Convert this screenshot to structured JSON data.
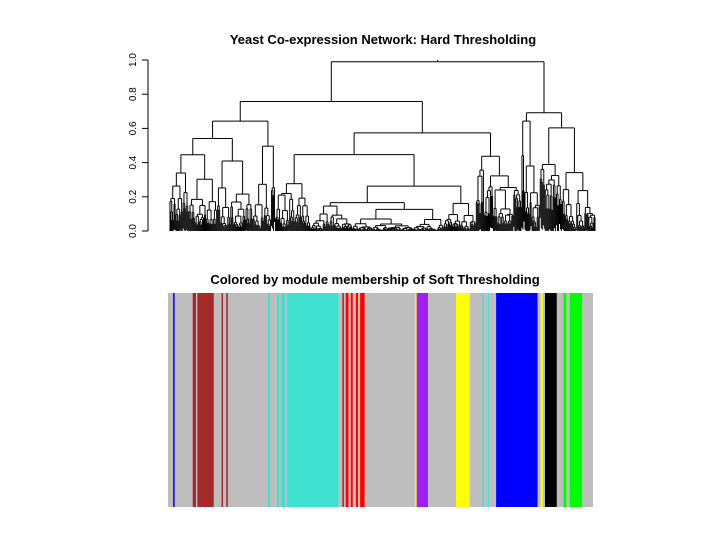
{
  "chart_data": [
    {
      "type": "dendrogram",
      "title": "Yeast Co-expression Network: Hard Thresholding",
      "xlabel": "",
      "ylabel": "",
      "ylim": [
        0.0,
        1.0
      ],
      "yticks": [
        0.0,
        0.2,
        0.4,
        0.6,
        0.8,
        1.0
      ],
      "ytick_labels": [
        "0.0",
        "0.2",
        "0.4",
        "0.6",
        "0.8",
        "1.0"
      ],
      "leaf_count": 420,
      "root_height": 1.0,
      "merge_height_range": [
        0.0,
        0.99
      ]
    },
    {
      "type": "color-bar",
      "title": "Colored by module membership of Soft Thresholding",
      "xlabel": "",
      "ylabel": "",
      "segments": [
        {
          "color": "grey",
          "start": 0.0,
          "end": 0.012
        },
        {
          "color": "blue",
          "start": 0.012,
          "end": 0.016
        },
        {
          "color": "grey",
          "start": 0.016,
          "end": 0.058
        },
        {
          "color": "brown",
          "start": 0.058,
          "end": 0.066
        },
        {
          "color": "grey",
          "start": 0.066,
          "end": 0.069
        },
        {
          "color": "brown",
          "start": 0.069,
          "end": 0.108
        },
        {
          "color": "grey",
          "start": 0.108,
          "end": 0.126
        },
        {
          "color": "brown",
          "start": 0.126,
          "end": 0.13
        },
        {
          "color": "grey",
          "start": 0.13,
          "end": 0.137
        },
        {
          "color": "brown",
          "start": 0.137,
          "end": 0.141
        },
        {
          "color": "grey",
          "start": 0.141,
          "end": 0.235
        },
        {
          "color": "turquoise",
          "start": 0.235,
          "end": 0.24
        },
        {
          "color": "grey",
          "start": 0.24,
          "end": 0.256
        },
        {
          "color": "turquoise",
          "start": 0.256,
          "end": 0.262
        },
        {
          "color": "grey",
          "start": 0.262,
          "end": 0.266
        },
        {
          "color": "turquoise",
          "start": 0.266,
          "end": 0.277
        },
        {
          "color": "grey",
          "start": 0.277,
          "end": 0.28
        },
        {
          "color": "turquoise",
          "start": 0.28,
          "end": 0.402
        },
        {
          "color": "grey",
          "start": 0.402,
          "end": 0.41
        },
        {
          "color": "brown",
          "start": 0.41,
          "end": 0.414
        },
        {
          "color": "grey",
          "start": 0.414,
          "end": 0.418
        },
        {
          "color": "red",
          "start": 0.418,
          "end": 0.425
        },
        {
          "color": "grey",
          "start": 0.425,
          "end": 0.43
        },
        {
          "color": "red",
          "start": 0.43,
          "end": 0.435
        },
        {
          "color": "grey",
          "start": 0.435,
          "end": 0.442
        },
        {
          "color": "red",
          "start": 0.442,
          "end": 0.447
        },
        {
          "color": "grey",
          "start": 0.447,
          "end": 0.452
        },
        {
          "color": "red",
          "start": 0.452,
          "end": 0.463
        },
        {
          "color": "grey",
          "start": 0.463,
          "end": 0.582
        },
        {
          "color": "yellow",
          "start": 0.582,
          "end": 0.585
        },
        {
          "color": "purple",
          "start": 0.585,
          "end": 0.612
        },
        {
          "color": "grey",
          "start": 0.612,
          "end": 0.678
        },
        {
          "color": "yellow",
          "start": 0.678,
          "end": 0.71
        },
        {
          "color": "grey",
          "start": 0.71,
          "end": 0.74
        },
        {
          "color": "turquoise",
          "start": 0.74,
          "end": 0.744
        },
        {
          "color": "grey",
          "start": 0.744,
          "end": 0.752
        },
        {
          "color": "turquoise",
          "start": 0.752,
          "end": 0.756
        },
        {
          "color": "grey",
          "start": 0.756,
          "end": 0.772
        },
        {
          "color": "blue",
          "start": 0.772,
          "end": 0.87
        },
        {
          "color": "grey",
          "start": 0.87,
          "end": 0.877
        },
        {
          "color": "yellow",
          "start": 0.877,
          "end": 0.882
        },
        {
          "color": "grey",
          "start": 0.882,
          "end": 0.887
        },
        {
          "color": "black",
          "start": 0.887,
          "end": 0.915
        },
        {
          "color": "grey",
          "start": 0.915,
          "end": 0.93
        },
        {
          "color": "green",
          "start": 0.93,
          "end": 0.938
        },
        {
          "color": "grey",
          "start": 0.938,
          "end": 0.945
        },
        {
          "color": "green",
          "start": 0.945,
          "end": 0.975
        },
        {
          "color": "grey",
          "start": 0.975,
          "end": 1.0
        }
      ]
    }
  ],
  "colors": {
    "grey": "#bebebe",
    "blue": "#0000ff",
    "brown": "#a52a2a",
    "turquoise": "#40e0d0",
    "red": "#ff0000",
    "purple": "#a020f0",
    "yellow": "#ffff00",
    "black": "#000000",
    "green": "#00ff00",
    "axis": "#000000"
  }
}
